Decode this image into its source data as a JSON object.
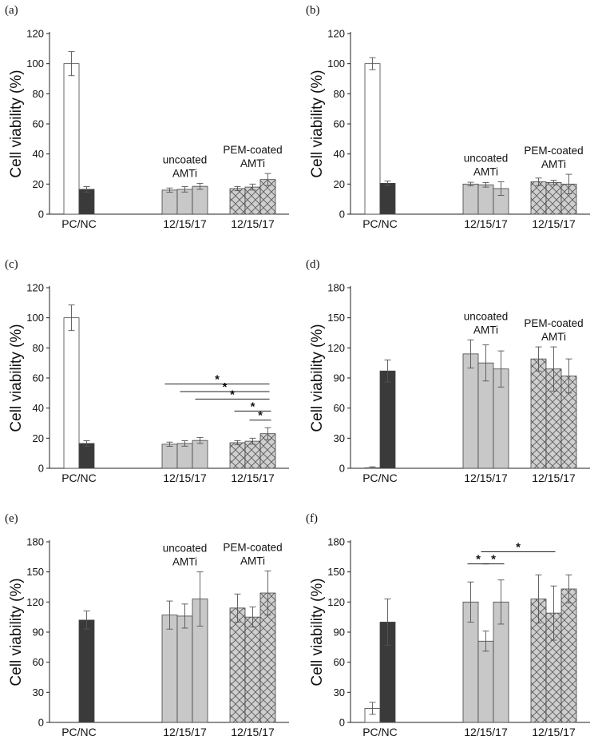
{
  "chart_data": [
    {
      "panel": "(a)",
      "type": "bar",
      "ylabel": "Cell viability (%)",
      "ylim": [
        0,
        120
      ],
      "yticks": [
        0,
        20,
        40,
        60,
        80,
        100,
        120
      ],
      "categories": [
        "PC/NC",
        "12/15/17",
        "12/15/17"
      ],
      "groups": [
        {
          "label": "PC/NC",
          "title": [],
          "bars": [
            {
              "name": "PC",
              "value": 100,
              "err": 8,
              "fill": "#ffffff"
            },
            {
              "name": "NC",
              "value": 16.5,
              "err": 1.8,
              "fill": "#3a3a3a"
            }
          ]
        },
        {
          "label": "12/15/17",
          "title": [
            "uncoated",
            "AMTi"
          ],
          "bars": [
            {
              "name": "12",
              "value": 16,
              "err": 1.4,
              "fill": "#c8c8c8"
            },
            {
              "name": "15",
              "value": 16.5,
              "err": 1.8,
              "fill": "#c8c8c8"
            },
            {
              "name": "17",
              "value": 18.5,
              "err": 2,
              "fill": "#c8c8c8"
            }
          ]
        },
        {
          "label": "12/15/17",
          "title": [
            "PEM-coated",
            "AMTi"
          ],
          "bars": [
            {
              "name": "12",
              "value": 17,
              "err": 1.4,
              "fill": "#cfcfcf",
              "hatch": true
            },
            {
              "name": "15",
              "value": 18,
              "err": 2,
              "fill": "#cfcfcf",
              "hatch": true
            },
            {
              "name": "17",
              "value": 23,
              "err": 4,
              "fill": "#cfcfcf",
              "hatch": true
            }
          ]
        }
      ],
      "significance": []
    },
    {
      "panel": "(b)",
      "type": "bar",
      "ylabel": "Cell viability (%)",
      "ylim": [
        0,
        120
      ],
      "yticks": [
        0,
        20,
        40,
        60,
        80,
        100,
        120
      ],
      "categories": [
        "PC/NC",
        "12/15/17",
        "12/15/17"
      ],
      "groups": [
        {
          "label": "PC/NC",
          "title": [],
          "bars": [
            {
              "name": "PC",
              "value": 100,
              "err": 4,
              "fill": "#ffffff"
            },
            {
              "name": "NC",
              "value": 20.5,
              "err": 1.5,
              "fill": "#3a3a3a"
            }
          ]
        },
        {
          "label": "12/15/17",
          "title": [
            "uncoated",
            "AMTi"
          ],
          "bars": [
            {
              "name": "12",
              "value": 20,
              "err": 1.2,
              "fill": "#c8c8c8"
            },
            {
              "name": "15",
              "value": 19.5,
              "err": 1.5,
              "fill": "#c8c8c8"
            },
            {
              "name": "17",
              "value": 17,
              "err": 4.5,
              "fill": "#c8c8c8"
            }
          ]
        },
        {
          "label": "12/15/17",
          "title": [
            "PEM-coated",
            "AMTi"
          ],
          "bars": [
            {
              "name": "12",
              "value": 21.5,
              "err": 2.5,
              "fill": "#cfcfcf",
              "hatch": true
            },
            {
              "name": "15",
              "value": 21,
              "err": 1.5,
              "fill": "#cfcfcf",
              "hatch": true
            },
            {
              "name": "17",
              "value": 20,
              "err": 6.5,
              "fill": "#cfcfcf",
              "hatch": true
            }
          ]
        }
      ],
      "significance": []
    },
    {
      "panel": "(c)",
      "type": "bar",
      "ylabel": "Cell viability (%)",
      "ylim": [
        0,
        120
      ],
      "yticks": [
        0,
        20,
        40,
        60,
        80,
        100,
        120
      ],
      "categories": [
        "PC/NC",
        "12/15/17",
        "12/15/17"
      ],
      "groups": [
        {
          "label": "PC/NC",
          "title": [],
          "bars": [
            {
              "name": "PC",
              "value": 100,
              "err": 8.5,
              "fill": "#ffffff"
            },
            {
              "name": "NC",
              "value": 16.5,
              "err": 1.8,
              "fill": "#3a3a3a"
            }
          ]
        },
        {
          "label": "12/15/17",
          "title": [],
          "bars": [
            {
              "name": "12",
              "value": 16,
              "err": 1.4,
              "fill": "#c8c8c8"
            },
            {
              "name": "15",
              "value": 16.5,
              "err": 1.8,
              "fill": "#c8c8c8"
            },
            {
              "name": "17",
              "value": 18.5,
              "err": 2,
              "fill": "#c8c8c8"
            }
          ]
        },
        {
          "label": "12/15/17",
          "title": [],
          "bars": [
            {
              "name": "12",
              "value": 17,
              "err": 1.4,
              "fill": "#cfcfcf",
              "hatch": true
            },
            {
              "name": "15",
              "value": 18,
              "err": 2,
              "fill": "#cfcfcf",
              "hatch": true
            },
            {
              "name": "17",
              "value": 23,
              "err": 4,
              "fill": "#cfcfcf",
              "hatch": true
            }
          ]
        }
      ],
      "significance": [
        {
          "from": [
            1,
            0
          ],
          "to": [
            2,
            2
          ],
          "y": 56,
          "label": "*"
        },
        {
          "from": [
            1,
            1
          ],
          "to": [
            2,
            2
          ],
          "y": 51,
          "label": "*"
        },
        {
          "from": [
            1,
            2
          ],
          "to": [
            2,
            2
          ],
          "y": 46,
          "label": "*"
        },
        {
          "from": [
            2,
            0
          ],
          "to": [
            2,
            2
          ],
          "y": 38,
          "label": "*"
        },
        {
          "from": [
            2,
            1
          ],
          "to": [
            2,
            2
          ],
          "y": 32,
          "label": "*"
        }
      ]
    },
    {
      "panel": "(d)",
      "type": "bar",
      "ylabel": "Cell viability (%)",
      "ylim": [
        0,
        180
      ],
      "yticks": [
        0,
        30,
        60,
        90,
        120,
        150,
        180
      ],
      "categories": [
        "PC/NC",
        "12/15/17",
        "12/15/17"
      ],
      "groups": [
        {
          "label": "PC/NC",
          "title": [],
          "bars": [
            {
              "name": "PC",
              "value": 0.5,
              "err": 1,
              "fill": "#ffffff"
            },
            {
              "name": "NC",
              "value": 97,
              "err": 11,
              "fill": "#3a3a3a"
            }
          ]
        },
        {
          "label": "12/15/17",
          "title": [
            "uncoated",
            "AMTi"
          ],
          "bars": [
            {
              "name": "12",
              "value": 114,
              "err": 14,
              "fill": "#c8c8c8"
            },
            {
              "name": "15",
              "value": 105,
              "err": 18,
              "fill": "#c8c8c8"
            },
            {
              "name": "17",
              "value": 99,
              "err": 18,
              "fill": "#c8c8c8"
            }
          ]
        },
        {
          "label": "12/15/17",
          "title": [
            "PEM-coated",
            "AMTi"
          ],
          "bars": [
            {
              "name": "12",
              "value": 109,
              "err": 12,
              "fill": "#cfcfcf",
              "hatch": true
            },
            {
              "name": "15",
              "value": 99,
              "err": 22,
              "fill": "#cfcfcf",
              "hatch": true
            },
            {
              "name": "17",
              "value": 92,
              "err": 17,
              "fill": "#cfcfcf",
              "hatch": true
            }
          ]
        }
      ],
      "significance": []
    },
    {
      "panel": "(e)",
      "type": "bar",
      "ylabel": "Cell viability (%)",
      "ylim": [
        0,
        180
      ],
      "yticks": [
        0,
        30,
        60,
        90,
        120,
        150,
        180
      ],
      "categories": [
        "PC/NC",
        "12/15/17",
        "12/15/17"
      ],
      "groups": [
        {
          "label": "PC/NC",
          "title": [],
          "bars": [
            {
              "name": "PC",
              "value": 0,
              "err": 0,
              "fill": "#ffffff"
            },
            {
              "name": "NC",
              "value": 102,
              "err": 9,
              "fill": "#3a3a3a"
            }
          ]
        },
        {
          "label": "12/15/17",
          "title": [
            "uncoated",
            "AMTi"
          ],
          "bars": [
            {
              "name": "12",
              "value": 107,
              "err": 14,
              "fill": "#c8c8c8"
            },
            {
              "name": "15",
              "value": 106,
              "err": 12,
              "fill": "#c8c8c8"
            },
            {
              "name": "17",
              "value": 123,
              "err": 27,
              "fill": "#c8c8c8"
            }
          ]
        },
        {
          "label": "12/15/17",
          "title": [
            "PEM-coated",
            "AMTi"
          ],
          "bars": [
            {
              "name": "12",
              "value": 114,
              "err": 14,
              "fill": "#cfcfcf",
              "hatch": true
            },
            {
              "name": "15",
              "value": 105,
              "err": 10,
              "fill": "#cfcfcf",
              "hatch": true
            },
            {
              "name": "17",
              "value": 129,
              "err": 22,
              "fill": "#cfcfcf",
              "hatch": true
            }
          ]
        }
      ],
      "significance": []
    },
    {
      "panel": "(f)",
      "type": "bar",
      "ylabel": "Cell viability (%)",
      "ylim": [
        0,
        180
      ],
      "yticks": [
        0,
        30,
        60,
        90,
        120,
        150,
        180
      ],
      "categories": [
        "PC/NC",
        "12/15/17",
        "12/15/17"
      ],
      "groups": [
        {
          "label": "PC/NC",
          "title": [],
          "bars": [
            {
              "name": "PC",
              "value": 14,
              "err": 6,
              "fill": "#ffffff"
            },
            {
              "name": "NC",
              "value": 100,
              "err": 23,
              "fill": "#3a3a3a"
            }
          ]
        },
        {
          "label": "12/15/17",
          "title": [],
          "bars": [
            {
              "name": "12",
              "value": 120,
              "err": 20,
              "fill": "#c8c8c8"
            },
            {
              "name": "15",
              "value": 81,
              "err": 10,
              "fill": "#c8c8c8"
            },
            {
              "name": "17",
              "value": 120,
              "err": 22,
              "fill": "#c8c8c8"
            }
          ]
        },
        {
          "label": "12/15/17",
          "title": [],
          "bars": [
            {
              "name": "12",
              "value": 123,
              "err": 24,
              "fill": "#cfcfcf",
              "hatch": true
            },
            {
              "name": "15",
              "value": 109,
              "err": 27,
              "fill": "#cfcfcf",
              "hatch": true
            },
            {
              "name": "17",
              "value": 133,
              "err": 14,
              "fill": "#cfcfcf",
              "hatch": true
            }
          ]
        }
      ],
      "significance": [
        {
          "from": [
            1,
            0
          ],
          "to": [
            1,
            1
          ],
          "y": 158,
          "label": "*"
        },
        {
          "from": [
            1,
            1
          ],
          "to": [
            1,
            2
          ],
          "y": 158,
          "label": "*"
        },
        {
          "from": [
            1,
            1
          ],
          "to": [
            2,
            1
          ],
          "y": 170,
          "label": "*"
        }
      ]
    }
  ]
}
